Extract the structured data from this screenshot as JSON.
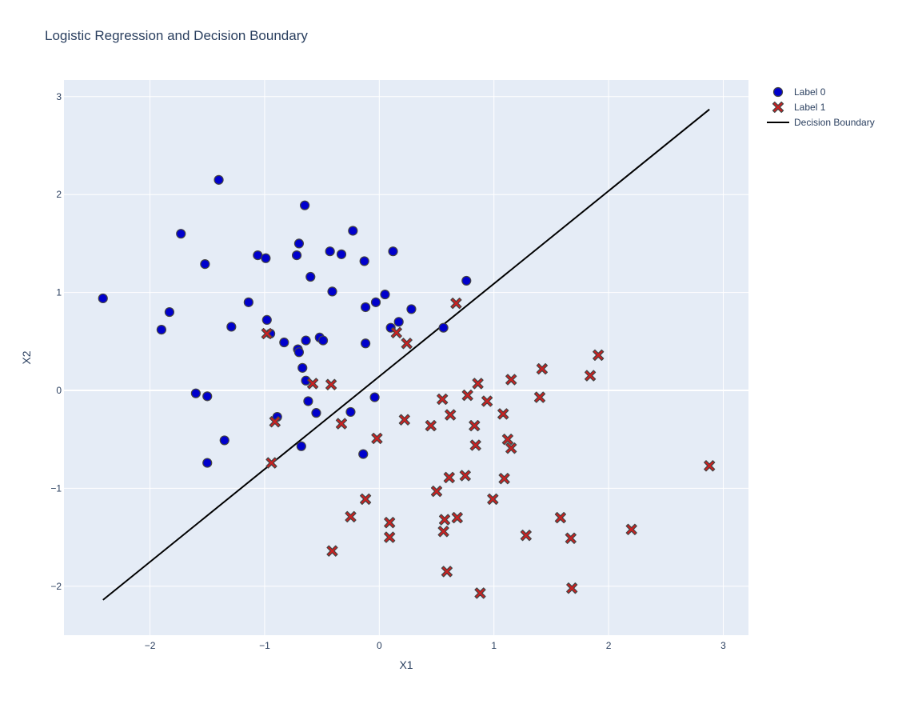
{
  "chart_data": {
    "type": "scatter",
    "title": "Logistic Regression and Decision Boundary",
    "xlabel": "X1",
    "ylabel": "X2",
    "xlim": [
      -2.75,
      3.22
    ],
    "ylim": [
      -2.5,
      3.17
    ],
    "xticks": [
      -2,
      -1,
      0,
      1,
      2,
      3
    ],
    "yticks": [
      -2,
      -1,
      0,
      1,
      2,
      3
    ],
    "grid": true,
    "legend_position": "top-right",
    "colors": {
      "plot_bg": "#E5ECF6",
      "grid": "#ffffff",
      "label0_fill": "#0000CC",
      "label1_fill": "#CC2020",
      "marker_outline": "#444444",
      "boundary": "#000000",
      "text": "#2a3f5f",
      "tick_text": "#2a3f5f"
    },
    "series": [
      {
        "name": "Label 0",
        "marker": "circle",
        "x": [
          -2.41,
          -1.9,
          -1.83,
          -1.73,
          -1.6,
          -1.52,
          -1.5,
          -1.5,
          -1.4,
          -1.35,
          -1.29,
          -1.14,
          -1.06,
          -0.99,
          -0.98,
          -0.95,
          -0.89,
          -0.83,
          -0.72,
          -0.71,
          -0.7,
          -0.7,
          -0.68,
          -0.67,
          -0.65,
          -0.64,
          -0.64,
          -0.62,
          -0.6,
          -0.55,
          -0.52,
          -0.49,
          -0.43,
          -0.41,
          -0.33,
          -0.25,
          -0.23,
          -0.14,
          -0.13,
          -0.12,
          -0.12,
          -0.04,
          -0.03,
          0.05,
          0.1,
          0.12,
          0.17,
          0.28,
          0.56,
          0.76
        ],
        "y": [
          0.94,
          0.62,
          0.8,
          1.6,
          -0.03,
          1.29,
          -0.06,
          -0.74,
          2.15,
          -0.51,
          0.65,
          0.9,
          1.38,
          1.35,
          0.72,
          0.58,
          -0.27,
          0.49,
          1.38,
          0.42,
          0.39,
          1.5,
          -0.57,
          0.23,
          1.89,
          0.1,
          0.51,
          -0.11,
          1.16,
          -0.23,
          0.54,
          0.51,
          1.42,
          1.01,
          1.39,
          -0.22,
          1.63,
          -0.65,
          1.32,
          0.85,
          0.48,
          -0.07,
          0.9,
          0.98,
          0.64,
          1.42,
          0.7,
          0.83,
          0.64,
          1.12
        ]
      },
      {
        "name": "Label 1",
        "marker": "x",
        "x": [
          -0.98,
          -0.94,
          -0.91,
          -0.58,
          -0.42,
          -0.41,
          -0.33,
          -0.25,
          -0.12,
          -0.02,
          0.09,
          0.09,
          0.15,
          0.22,
          0.24,
          0.45,
          0.5,
          0.55,
          0.56,
          0.57,
          0.59,
          0.61,
          0.62,
          0.67,
          0.68,
          0.75,
          0.77,
          0.83,
          0.84,
          0.86,
          0.88,
          0.94,
          0.99,
          1.08,
          1.09,
          1.12,
          1.15,
          1.15,
          1.28,
          1.4,
          1.42,
          1.58,
          1.67,
          1.68,
          1.84,
          1.91,
          2.2,
          2.88
        ],
        "y": [
          0.58,
          -0.74,
          -0.32,
          0.07,
          0.06,
          -1.64,
          -0.34,
          -1.29,
          -1.11,
          -0.49,
          -1.35,
          -1.5,
          0.59,
          -0.3,
          0.48,
          -0.36,
          -1.03,
          -0.09,
          -1.44,
          -1.32,
          -1.85,
          -0.89,
          -0.25,
          0.89,
          -1.3,
          -0.87,
          -0.05,
          -0.36,
          -0.56,
          0.07,
          -2.07,
          -0.11,
          -1.11,
          -0.24,
          -0.9,
          -0.5,
          0.11,
          -0.59,
          -1.48,
          -0.07,
          0.22,
          -1.3,
          -1.51,
          -2.02,
          0.15,
          0.36,
          -1.42,
          -0.77
        ]
      },
      {
        "name": "Decision Boundary",
        "marker": "line",
        "x": [
          -2.41,
          2.88
        ],
        "y": [
          -2.14,
          2.87
        ]
      }
    ]
  }
}
